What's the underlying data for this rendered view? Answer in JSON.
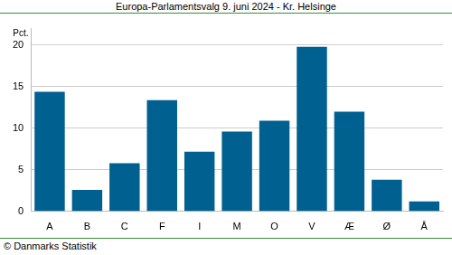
{
  "chart_data": {
    "type": "bar",
    "title": "Europa-Parlamentsvalg 9. juni 2024 - Kr. Helsinge",
    "y_label": "Pct.",
    "source": "© Danmarks Statistik",
    "categories": [
      "A",
      "B",
      "C",
      "F",
      "I",
      "M",
      "O",
      "V",
      "Æ",
      "Ø",
      "Å"
    ],
    "values": [
      14.4,
      2.6,
      5.8,
      13.4,
      7.2,
      9.6,
      10.9,
      19.8,
      12.0,
      3.8,
      1.2
    ],
    "color": "#00608f",
    "ylim": [
      0,
      22
    ],
    "yticks": [
      0,
      5,
      10,
      15,
      20
    ],
    "grid": true
  }
}
